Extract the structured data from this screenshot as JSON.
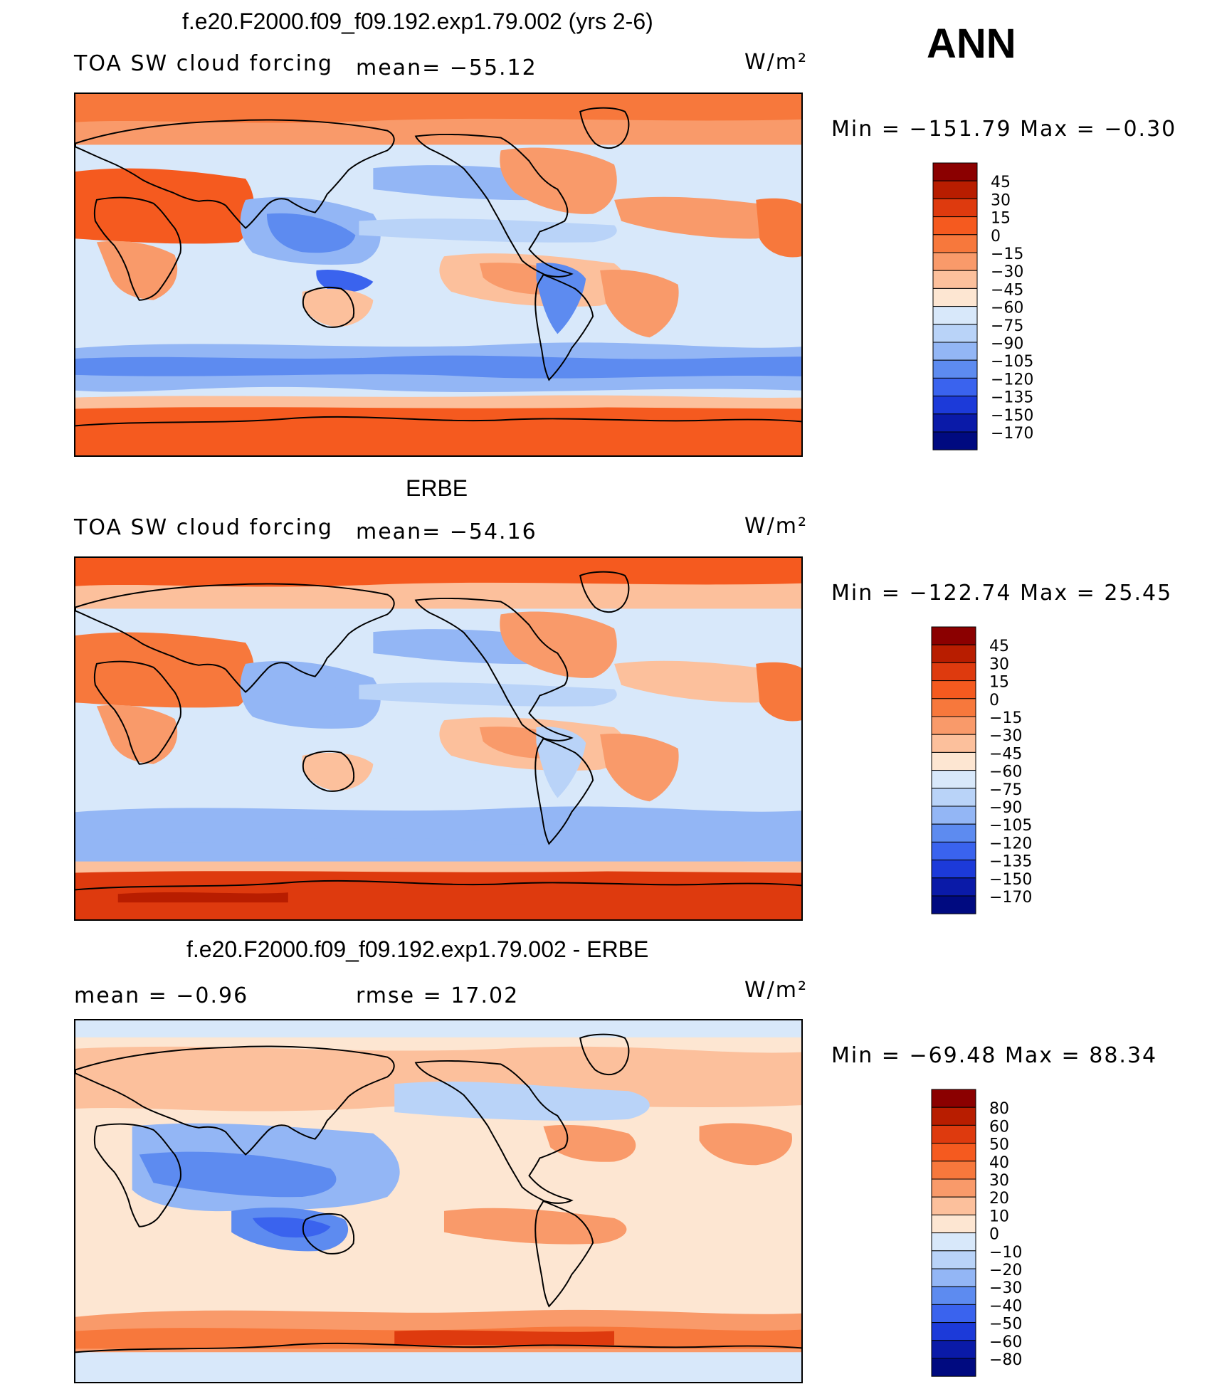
{
  "season": "ANN",
  "panels": [
    {
      "title": "f.e20.F2000.f09_f09.192.exp1.79.002 (yrs 2-6)",
      "left_label": "TOA SW cloud forcing",
      "mean_label": "mean= −55.12",
      "units": "W/m²",
      "minmax": "Min  =  −151.79  Max  =    −0.30"
    },
    {
      "title": "ERBE",
      "left_label": "TOA SW cloud forcing",
      "mean_label": "mean= −54.16",
      "units": "W/m²",
      "minmax": "Min  =  −122.74  Max  =    25.45"
    },
    {
      "title": "f.e20.F2000.f09_f09.192.exp1.79.002 - ERBE",
      "left_label": "mean  =    −0.96",
      "mean_label": "rmse  =    17.02",
      "units": "W/m²",
      "minmax": "Min  =  −69.48  Max  =    88.34"
    }
  ],
  "chart_data": [
    {
      "type": "heatmap",
      "title": "f.e20.F2000.f09_f09.192.exp1.79.002 (yrs 2-6)",
      "variable": "TOA SW cloud forcing",
      "units": "W/m2",
      "mean": -55.12,
      "min": -151.79,
      "max": -0.3,
      "levels": [
        "45",
        "30",
        "15",
        "0",
        "−15",
        "−30",
        "−45",
        "−60",
        "−75",
        "−90",
        "−105",
        "−120",
        "−135",
        "−150",
        "−170"
      ],
      "colors": [
        "#8b0000",
        "#b81d00",
        "#de3a0e",
        "#f55a1f",
        "#f7783c",
        "#f99a6a",
        "#fcc09c",
        "#fde6d2",
        "#d8e8fa",
        "#b9d3f8",
        "#93b6f5",
        "#5d8bf0",
        "#3a63ee",
        "#1c3ad9",
        "#0a1aa8",
        "#000a80"
      ]
    },
    {
      "type": "heatmap",
      "title": "ERBE",
      "variable": "TOA SW cloud forcing",
      "units": "W/m2",
      "mean": -54.16,
      "min": -122.74,
      "max": 25.45,
      "levels": [
        "45",
        "30",
        "15",
        "0",
        "−15",
        "−30",
        "−45",
        "−60",
        "−75",
        "−90",
        "−105",
        "−120",
        "−135",
        "−150",
        "−170"
      ],
      "colors": [
        "#8b0000",
        "#b81d00",
        "#de3a0e",
        "#f55a1f",
        "#f7783c",
        "#f99a6a",
        "#fcc09c",
        "#fde6d2",
        "#d8e8fa",
        "#b9d3f8",
        "#93b6f5",
        "#5d8bf0",
        "#3a63ee",
        "#1c3ad9",
        "#0a1aa8",
        "#000a80"
      ]
    },
    {
      "type": "heatmap",
      "title": "f.e20.F2000.f09_f09.192.exp1.79.002 - ERBE",
      "variable": "difference",
      "units": "W/m2",
      "mean": -0.96,
      "rmse": 17.02,
      "min": -69.48,
      "max": 88.34,
      "levels": [
        "80",
        "60",
        "50",
        "40",
        "30",
        "20",
        "10",
        "0",
        "−10",
        "−20",
        "−30",
        "−40",
        "−50",
        "−60",
        "−80"
      ],
      "colors": [
        "#8b0000",
        "#b81d00",
        "#de3a0e",
        "#f55a1f",
        "#f7783c",
        "#f99a6a",
        "#fcc09c",
        "#fde6d2",
        "#d8e8fa",
        "#b9d3f8",
        "#93b6f5",
        "#5d8bf0",
        "#3a63ee",
        "#1c3ad9",
        "#0a1aa8",
        "#000a80"
      ]
    }
  ]
}
